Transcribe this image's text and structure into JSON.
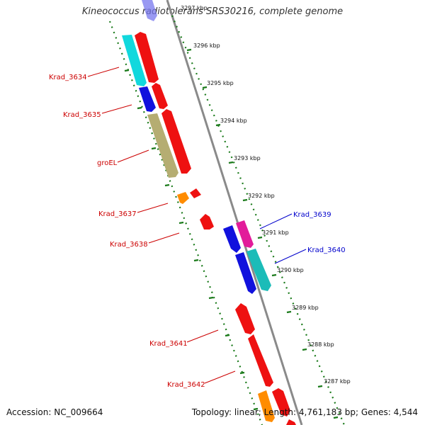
{
  "title": "Kineococcus radiotolerans SRS30216, complete genome",
  "footer": {
    "accession": "Accession: NC_009664",
    "summary": "Topology: linear; Length: 4,761,183 bp; Genes: 4,544"
  },
  "colors": {
    "backbone": "#888888",
    "tick": "#1a7a1a",
    "forward_label": "#cc0000",
    "reverse_label": "#0000cc"
  },
  "kbp_marks": [
    "3297 kbp",
    "3296 kbp",
    "3295 kbp",
    "3294 kbp",
    "3293 kbp",
    "3292 kbp",
    "3291 kbp",
    "3290 kbp",
    "3289 kbp",
    "3288 kbp",
    "3287 kbp"
  ],
  "gene_labels": {
    "krad_3634": "Krad_3634",
    "krad_3635": "Krad_3635",
    "groel": "groEL",
    "krad_3637": "Krad_3637",
    "krad_3638": "Krad_3638",
    "krad_3639": "Krad_3639",
    "krad_3640": "Krad_3640",
    "krad_3641": "Krad_3641",
    "krad_3642": "Krad_3642"
  },
  "gene_colors": {
    "red": "#ee1111",
    "blue": "#1111dd",
    "cyan": "#11d8dd",
    "olive": "#b5ad72",
    "orange": "#ff8c00",
    "magenta": "#e21c9a",
    "teal": "#1bbcb8"
  }
}
